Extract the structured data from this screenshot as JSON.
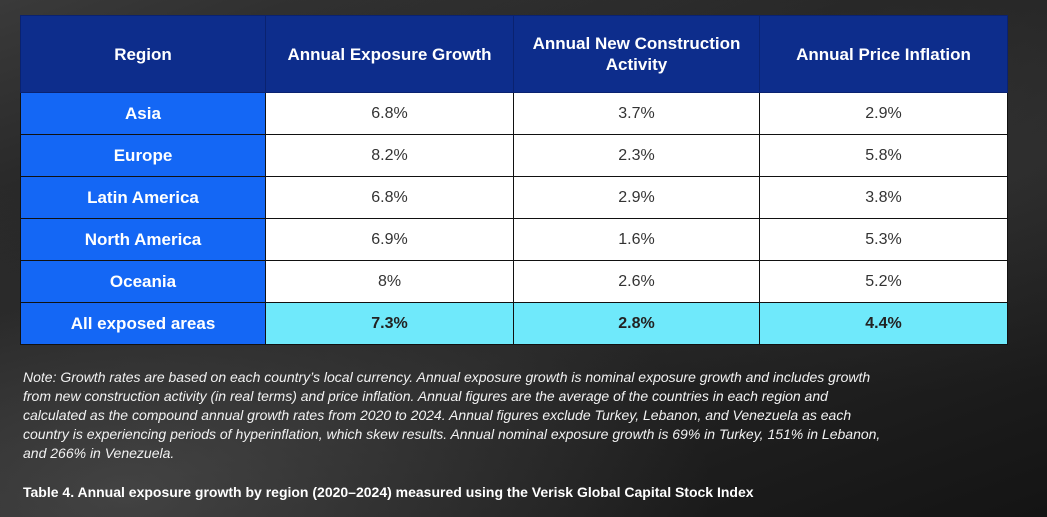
{
  "table": {
    "headers": [
      "Region",
      "Annual Exposure Growth",
      "Annual New Construction Activity",
      "Annual Price Inflation"
    ],
    "rows": [
      {
        "region": "Asia",
        "exposure": "6.8%",
        "construction": "3.7%",
        "inflation": "2.9%"
      },
      {
        "region": "Europe",
        "exposure": "8.2%",
        "construction": "2.3%",
        "inflation": "5.8%"
      },
      {
        "region": "Latin America",
        "exposure": "6.8%",
        "construction": "2.9%",
        "inflation": "3.8%"
      },
      {
        "region": "North America",
        "exposure": "6.9%",
        "construction": "1.6%",
        "inflation": "5.3%"
      },
      {
        "region": "Oceania",
        "exposure": "8%",
        "construction": "2.6%",
        "inflation": "5.2%"
      }
    ],
    "total": {
      "region": "All exposed areas",
      "exposure": "7.3%",
      "construction": "2.8%",
      "inflation": "4.4%"
    }
  },
  "note": "Note: Growth rates are based on each country’s local currency. Annual exposure growth is nominal exposure growth and includes growth from new construction activity (in real terms) and price inflation. Annual figures are the average of the countries in each region and calculated as the compound annual growth rates from 2020 to 2024. Annual figures exclude Turkey, Lebanon, and Venezuela as each country is experiencing periods of hyperinflation, which skew results. Annual nominal exposure growth is 69% in Turkey, 151% in Lebanon, and 266% in Venezuela.",
  "caption": "Table 4. Annual exposure growth by region (2020–2024) measured using the Verisk Global Capital Stock Index"
}
